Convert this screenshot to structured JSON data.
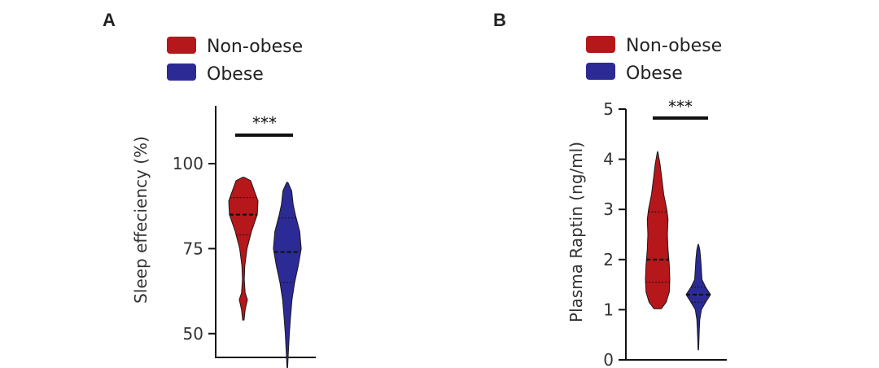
{
  "colors": {
    "non_obese": "#b5171a",
    "obese": "#2c2a94"
  },
  "chart_data": [
    {
      "type": "violin",
      "panel_label": "A",
      "ylabel": "Sleep effeciency (%)",
      "yticks": [
        50,
        75,
        100
      ],
      "ylim": [
        43,
        117
      ],
      "legend": [
        "Non-obese",
        "Obese"
      ],
      "significance": "***",
      "series": [
        {
          "name": "Non-obese",
          "min": 54,
          "max": 96,
          "median": 85,
          "q1": 79,
          "q3": 90,
          "profile": [
            [
              54,
              0.05
            ],
            [
              57,
              0.12
            ],
            [
              60,
              0.28
            ],
            [
              62,
              0.12
            ],
            [
              66,
              0.06
            ],
            [
              70,
              0.1
            ],
            [
              75,
              0.25
            ],
            [
              80,
              0.55
            ],
            [
              85,
              0.95
            ],
            [
              89,
              1.0
            ],
            [
              92,
              0.75
            ],
            [
              95,
              0.5
            ],
            [
              96,
              0.05
            ]
          ]
        },
        {
          "name": "Obese",
          "min": 40,
          "max": 94.5,
          "median": 74,
          "q1": 65,
          "q3": 84,
          "profile": [
            [
              40,
              0.02
            ],
            [
              45,
              0.08
            ],
            [
              50,
              0.14
            ],
            [
              55,
              0.22
            ],
            [
              60,
              0.32
            ],
            [
              65,
              0.5
            ],
            [
              70,
              0.75
            ],
            [
              75,
              0.95
            ],
            [
              80,
              0.85
            ],
            [
              85,
              0.55
            ],
            [
              88,
              0.4
            ],
            [
              92,
              0.3
            ],
            [
              94.5,
              0.04
            ]
          ]
        }
      ]
    },
    {
      "type": "violin",
      "panel_label": "B",
      "ylabel": "Plasma Raptin (ng/ml)",
      "yticks": [
        0,
        1,
        2,
        3,
        4,
        5
      ],
      "ylim": [
        0,
        5
      ],
      "legend": [
        "Non-obese",
        "Obese"
      ],
      "significance": "***",
      "series": [
        {
          "name": "Non-obese",
          "min": 1.02,
          "max": 4.15,
          "median": 2.0,
          "q1": 1.55,
          "q3": 2.95,
          "profile": [
            [
              1.02,
              0.3
            ],
            [
              1.15,
              0.7
            ],
            [
              1.35,
              0.95
            ],
            [
              1.6,
              1.0
            ],
            [
              1.9,
              0.95
            ],
            [
              2.2,
              0.85
            ],
            [
              2.5,
              0.8
            ],
            [
              2.8,
              0.85
            ],
            [
              3.0,
              0.75
            ],
            [
              3.3,
              0.5
            ],
            [
              3.6,
              0.35
            ],
            [
              3.9,
              0.2
            ],
            [
              4.15,
              0.02
            ]
          ]
        },
        {
          "name": "Obese",
          "min": 0.2,
          "max": 2.3,
          "median": 1.3,
          "q1": 1.15,
          "q3": 1.45,
          "profile": [
            [
              0.2,
              0.02
            ],
            [
              0.4,
              0.05
            ],
            [
              0.6,
              0.08
            ],
            [
              0.8,
              0.12
            ],
            [
              1.0,
              0.25
            ],
            [
              1.15,
              0.6
            ],
            [
              1.3,
              1.0
            ],
            [
              1.45,
              0.6
            ],
            [
              1.6,
              0.3
            ],
            [
              1.8,
              0.25
            ],
            [
              2.0,
              0.2
            ],
            [
              2.2,
              0.12
            ],
            [
              2.3,
              0.02
            ]
          ]
        }
      ]
    }
  ]
}
